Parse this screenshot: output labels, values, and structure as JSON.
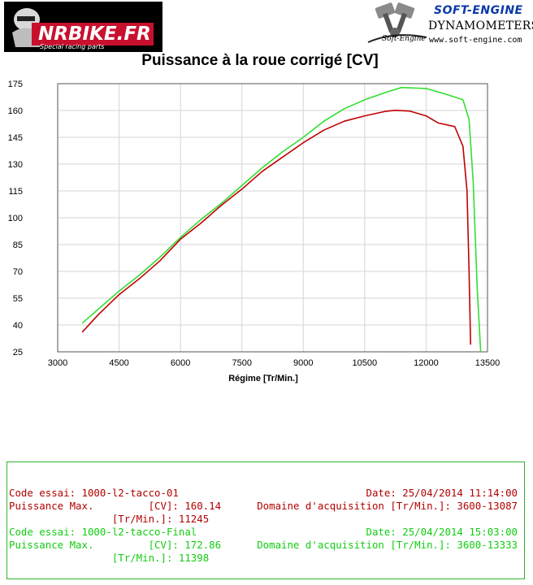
{
  "header": {
    "left_logo": {
      "text_main": "NRBIKE.FR",
      "tagline": "Special racing parts"
    },
    "right_logo": {
      "brand": "SOFT-ENGINE",
      "subtitle": "DYNAMOMETERS",
      "small_text": "Soft-Engine",
      "url": "www.soft-engine.com"
    }
  },
  "chart_data": {
    "type": "line",
    "title": "Puissance à la roue corrigé [CV]",
    "xlabel": "Régime [Tr/Min.]",
    "ylabel": "",
    "xlim": [
      3000,
      13500
    ],
    "ylim": [
      25,
      175
    ],
    "x_ticks": [
      "3000",
      "4500",
      "6000",
      "7500",
      "9000",
      "10500",
      "12000",
      "13500"
    ],
    "y_ticks": [
      "175",
      "160",
      "145",
      "130",
      "115",
      "100",
      "85",
      "70",
      "55",
      "40",
      "25"
    ],
    "grid": true,
    "series": [
      {
        "color": "#c00000",
        "points": [
          [
            3600,
            36
          ],
          [
            4000,
            46
          ],
          [
            4500,
            57
          ],
          [
            5000,
            66
          ],
          [
            5500,
            76
          ],
          [
            6000,
            88
          ],
          [
            6500,
            97
          ],
          [
            7000,
            107
          ],
          [
            7500,
            116
          ],
          [
            8000,
            126
          ],
          [
            8500,
            134
          ],
          [
            9000,
            142
          ],
          [
            9500,
            149
          ],
          [
            10000,
            154
          ],
          [
            10500,
            157
          ],
          [
            11000,
            159.5
          ],
          [
            11245,
            160.1
          ],
          [
            11600,
            159.7
          ],
          [
            12000,
            157
          ],
          [
            12300,
            153
          ],
          [
            12700,
            151
          ],
          [
            12900,
            140
          ],
          [
            13000,
            115
          ],
          [
            13050,
            70
          ],
          [
            13087,
            29
          ]
        ]
      },
      {
        "color": "#33dd33",
        "points": [
          [
            3600,
            41
          ],
          [
            4000,
            49
          ],
          [
            4500,
            59
          ],
          [
            5000,
            68
          ],
          [
            5500,
            78
          ],
          [
            6000,
            89
          ],
          [
            6500,
            99
          ],
          [
            7000,
            108
          ],
          [
            7500,
            118
          ],
          [
            8000,
            128
          ],
          [
            8500,
            137
          ],
          [
            9000,
            145
          ],
          [
            9500,
            154
          ],
          [
            10000,
            161
          ],
          [
            10500,
            166
          ],
          [
            11000,
            170
          ],
          [
            11398,
            172.86
          ],
          [
            12000,
            172.3
          ],
          [
            12500,
            169
          ],
          [
            12900,
            166
          ],
          [
            13050,
            155
          ],
          [
            13150,
            120
          ],
          [
            13250,
            60
          ],
          [
            13333,
            25
          ]
        ]
      }
    ]
  },
  "info_box": {
    "border_color": "#33cc33",
    "lines": [
      {
        "left": "Code essai: 1000-l2-tacco-01",
        "right": "Date: 25/04/2014 11:14:00",
        "color": "#b20000"
      },
      {
        "left": "Puissance Max.         [CV]: 160.14",
        "right": "Domaine d'acquisition [Tr/Min.]: 3600-13087",
        "color": "#b20000"
      },
      {
        "left": "                 [Tr/Min.]: 11245",
        "right": "",
        "color": "#b20000"
      },
      {
        "left": "Code essai: 1000-l2-tacco-Final",
        "right": "Date: 25/04/2014 15:03:00",
        "color": "#12cc12"
      },
      {
        "left": "Puissance Max.         [CV]: 172.86",
        "right": "Domaine d'acquisition [Tr/Min.]: 3600-13333",
        "color": "#12cc12"
      },
      {
        "left": "                 [Tr/Min.]: 11398",
        "right": "",
        "color": "#12cc12"
      }
    ]
  }
}
